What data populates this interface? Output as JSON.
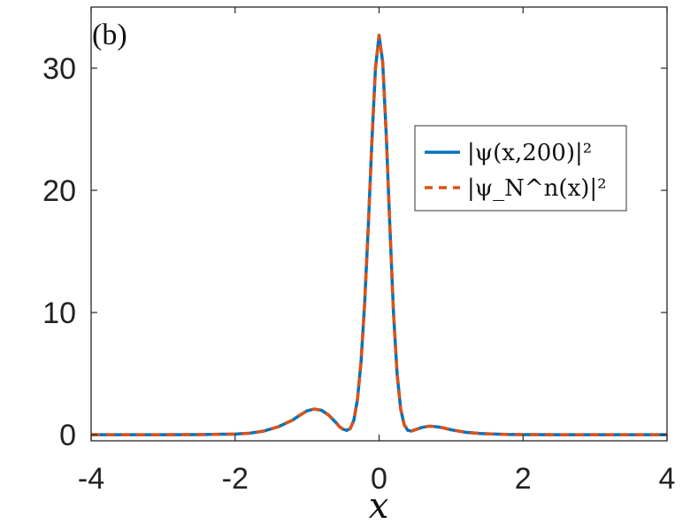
{
  "chart_data": {
    "type": "line",
    "panel_label": "(b)",
    "xlabel": "x",
    "ylabel": "",
    "xlim": [
      -4,
      4
    ],
    "ylim": [
      -0.5,
      35
    ],
    "xticks": [
      -4,
      -2,
      0,
      2,
      4
    ],
    "xtick_labels": [
      "-4",
      "-2",
      "0",
      "2",
      "4"
    ],
    "yticks": [
      0,
      10,
      20,
      30
    ],
    "ytick_labels": [
      "0",
      "10",
      "20",
      "30"
    ],
    "grid": false,
    "legend_position": "right",
    "series": [
      {
        "name": "|ψ(x,200)|²",
        "style": "solid",
        "color": "#0072BD",
        "x": [
          -4,
          -3.0,
          -2.5,
          -2.0,
          -1.8,
          -1.6,
          -1.4,
          -1.2,
          -1.1,
          -1.0,
          -0.9,
          -0.8,
          -0.7,
          -0.6,
          -0.55,
          -0.5,
          -0.45,
          -0.4,
          -0.35,
          -0.3,
          -0.25,
          -0.2,
          -0.15,
          -0.1,
          -0.05,
          0.0,
          0.05,
          0.1,
          0.15,
          0.2,
          0.25,
          0.3,
          0.35,
          0.4,
          0.45,
          0.5,
          0.6,
          0.7,
          0.8,
          0.9,
          1.0,
          1.2,
          1.4,
          1.6,
          1.8,
          2.0,
          2.5,
          3.0,
          4.0
        ],
        "y": [
          0,
          0.0,
          0.01,
          0.05,
          0.12,
          0.3,
          0.65,
          1.2,
          1.6,
          1.95,
          2.1,
          2.0,
          1.6,
          1.0,
          0.65,
          0.45,
          0.35,
          0.5,
          1.2,
          2.9,
          6.0,
          10.8,
          17.0,
          24.0,
          30.0,
          32.7,
          30.5,
          24.5,
          17.0,
          10.0,
          5.0,
          2.1,
          0.8,
          0.35,
          0.3,
          0.4,
          0.6,
          0.7,
          0.65,
          0.55,
          0.4,
          0.2,
          0.1,
          0.05,
          0.02,
          0.01,
          0.0,
          0.0,
          0
        ]
      },
      {
        "name": "|ψ_N^n(x)|²",
        "style": "dashed",
        "color": "#D95319",
        "x": [
          -4,
          -3.0,
          -2.5,
          -2.0,
          -1.8,
          -1.6,
          -1.4,
          -1.2,
          -1.1,
          -1.0,
          -0.9,
          -0.8,
          -0.7,
          -0.6,
          -0.55,
          -0.5,
          -0.45,
          -0.4,
          -0.35,
          -0.3,
          -0.25,
          -0.2,
          -0.15,
          -0.1,
          -0.05,
          0.0,
          0.05,
          0.1,
          0.15,
          0.2,
          0.25,
          0.3,
          0.35,
          0.4,
          0.45,
          0.5,
          0.6,
          0.7,
          0.8,
          0.9,
          1.0,
          1.2,
          1.4,
          1.6,
          1.8,
          2.0,
          2.5,
          3.0,
          4.0
        ],
        "y": [
          0,
          0.0,
          0.01,
          0.05,
          0.12,
          0.3,
          0.65,
          1.2,
          1.6,
          1.95,
          2.1,
          2.0,
          1.6,
          1.0,
          0.65,
          0.45,
          0.35,
          0.5,
          1.2,
          2.9,
          6.0,
          10.8,
          17.0,
          24.0,
          30.0,
          32.7,
          30.5,
          24.5,
          17.0,
          10.0,
          5.0,
          2.1,
          0.8,
          0.35,
          0.3,
          0.4,
          0.6,
          0.7,
          0.65,
          0.55,
          0.4,
          0.2,
          0.1,
          0.05,
          0.02,
          0.01,
          0.0,
          0.0,
          0
        ]
      }
    ]
  }
}
